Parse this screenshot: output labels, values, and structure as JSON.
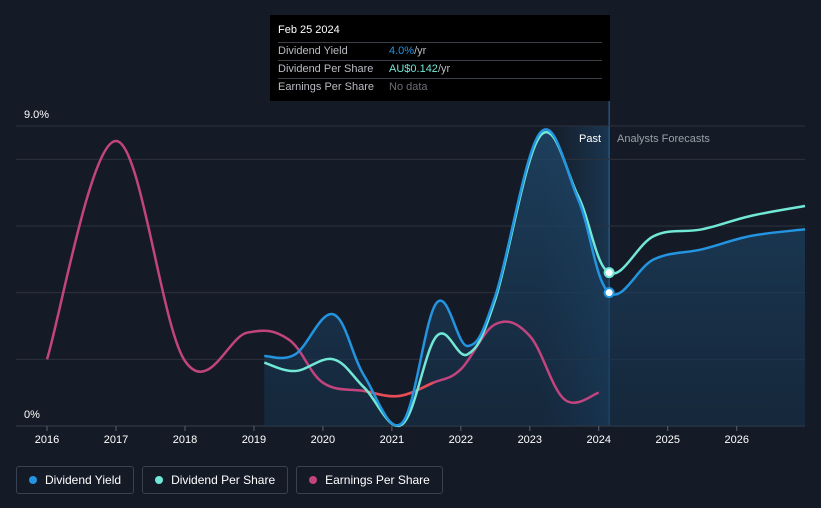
{
  "tooltip": {
    "date": "Feb 25 2024",
    "rows": [
      {
        "label": "Dividend Yield",
        "value": "4.0%",
        "unit": " /yr",
        "color": "#2394df"
      },
      {
        "label": "Dividend Per Share",
        "value": "AU$0.142",
        "unit": " /yr",
        "color": "#71e7d6"
      },
      {
        "label": "Earnings Per Share",
        "value": "No data",
        "unit": "",
        "color": "#6b6f76"
      }
    ]
  },
  "regions": {
    "past": "Past",
    "forecast": "Analysts Forecasts"
  },
  "legend": [
    {
      "label": "Dividend Yield",
      "color": "#2394df"
    },
    {
      "label": "Dividend Per Share",
      "color": "#71e7d6"
    },
    {
      "label": "Earnings Per Share",
      "color": "#c2447f"
    }
  ],
  "chart_data": {
    "type": "line",
    "y_axis_labels": [
      "9.0%",
      "0%"
    ],
    "ylim": [
      0,
      9
    ],
    "x_ticks": [
      2016,
      2017,
      2018,
      2019,
      2020,
      2021,
      2022,
      2023,
      2024,
      2025,
      2026
    ],
    "xlim": [
      2015.55,
      2026.99
    ],
    "past_end": 2024.15,
    "series": [
      {
        "name": "Dividend Yield",
        "color": "#2394df",
        "points": [
          [
            2019.15,
            2.1
          ],
          [
            2019.6,
            2.15
          ],
          [
            2020.15,
            3.35
          ],
          [
            2020.6,
            1.5
          ],
          [
            2021.15,
            0.1
          ],
          [
            2021.65,
            3.7
          ],
          [
            2022.1,
            2.4
          ],
          [
            2022.5,
            3.9
          ],
          [
            2023.15,
            8.8
          ],
          [
            2023.7,
            6.8
          ],
          [
            2024.15,
            4.0
          ],
          [
            2024.8,
            5.0
          ],
          [
            2025.5,
            5.3
          ],
          [
            2026.2,
            5.7
          ],
          [
            2026.99,
            5.9
          ]
        ]
      },
      {
        "name": "Dividend Per Share",
        "color": "#71e7d6",
        "points": [
          [
            2019.15,
            1.9
          ],
          [
            2019.6,
            1.65
          ],
          [
            2020.15,
            2.0
          ],
          [
            2020.6,
            1.15
          ],
          [
            2021.15,
            0.05
          ],
          [
            2021.65,
            2.7
          ],
          [
            2022.1,
            2.15
          ],
          [
            2022.5,
            3.8
          ],
          [
            2023.15,
            8.7
          ],
          [
            2023.7,
            6.9
          ],
          [
            2024.15,
            4.6
          ],
          [
            2024.8,
            5.7
          ],
          [
            2025.5,
            5.9
          ],
          [
            2026.2,
            6.3
          ],
          [
            2026.99,
            6.6
          ]
        ]
      },
      {
        "name": "Earnings Per Share",
        "color": "#c2447f",
        "segment_color": "#e94c55",
        "points": [
          [
            2016.0,
            2.0
          ],
          [
            2017.0,
            8.55
          ],
          [
            2018.0,
            1.95
          ],
          [
            2018.9,
            2.8
          ],
          [
            2019.5,
            2.6
          ],
          [
            2020.0,
            1.3
          ],
          [
            2020.6,
            1.05
          ],
          [
            2021.1,
            0.9
          ],
          [
            2021.6,
            1.3
          ],
          [
            2022.0,
            1.7
          ],
          [
            2022.5,
            3.05
          ],
          [
            2023.0,
            2.7
          ],
          [
            2023.5,
            0.8
          ],
          [
            2024.0,
            1.0
          ]
        ]
      }
    ],
    "highlight": {
      "date": "Feb 25 2024",
      "x": 2024.15,
      "dividend_yield": 4.0,
      "dividend_per_share": 4.6
    }
  }
}
